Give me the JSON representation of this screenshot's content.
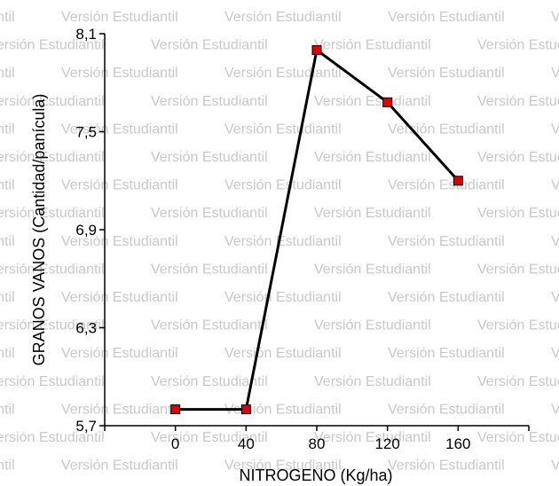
{
  "watermark": {
    "text": "Versión Estudiantil",
    "color": "#c9c9c9"
  },
  "chart_data": {
    "type": "line",
    "x": [
      0,
      40,
      80,
      120,
      160
    ],
    "series": [
      {
        "values": [
          5.8,
          5.8,
          8.0,
          7.68,
          7.2
        ],
        "line_color": "#000000",
        "marker": "square",
        "marker_color": "#e00000"
      }
    ],
    "xlabel": "NITROGENO (Kg/ha)",
    "ylabel": "GRANOS VANOS (Cantidad/panícula)",
    "xticks": [
      "0",
      "40",
      "80",
      "120",
      "160"
    ],
    "yticks": [
      "5,7",
      "6,3",
      "6,9",
      "7,5",
      "8,1"
    ],
    "xlim": [
      -40,
      200
    ],
    "ylim": [
      5.7,
      8.1
    ],
    "grid": false,
    "legend": "none"
  }
}
